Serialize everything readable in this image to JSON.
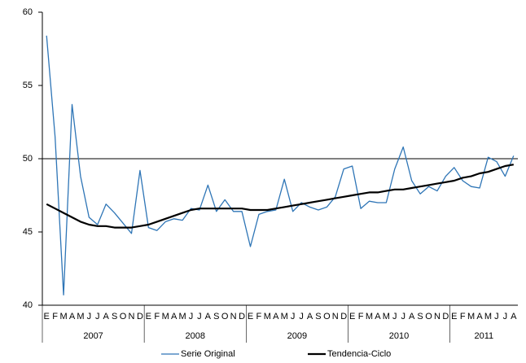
{
  "chart_data": {
    "type": "line",
    "categories": [
      "E",
      "F",
      "M",
      "A",
      "M",
      "J",
      "J",
      "A",
      "S",
      "O",
      "N",
      "D",
      "E",
      "F",
      "M",
      "A",
      "M",
      "J",
      "J",
      "A",
      "S",
      "O",
      "N",
      "D",
      "E",
      "F",
      "M",
      "A",
      "M",
      "J",
      "J",
      "A",
      "S",
      "O",
      "N",
      "D",
      "E",
      "F",
      "M",
      "A",
      "M",
      "J",
      "J",
      "A",
      "S",
      "O",
      "N",
      "D",
      "E",
      "F",
      "M",
      "A",
      "M",
      "J",
      "J",
      "A"
    ],
    "groups": [
      {
        "label": "2007",
        "count": 12
      },
      {
        "label": "2008",
        "count": 12
      },
      {
        "label": "2009",
        "count": 12
      },
      {
        "label": "2010",
        "count": 12
      },
      {
        "label": "2011",
        "count": 8
      }
    ],
    "series": [
      {
        "name": "Serie Original",
        "color": "#2e75b6",
        "width": 1.3,
        "values": [
          58.4,
          51.5,
          40.7,
          53.7,
          48.8,
          46.0,
          45.5,
          46.9,
          46.3,
          45.6,
          44.9,
          49.2,
          45.3,
          45.1,
          45.7,
          45.9,
          45.8,
          46.6,
          46.5,
          48.2,
          46.4,
          47.2,
          46.4,
          46.4,
          44.0,
          46.2,
          46.4,
          46.5,
          48.6,
          46.4,
          47.0,
          46.7,
          46.5,
          46.7,
          47.4,
          49.3,
          49.5,
          46.6,
          47.1,
          47.0,
          47.0,
          49.3,
          50.8,
          48.5,
          47.6,
          48.1,
          47.8,
          48.8,
          49.4,
          48.5,
          48.1,
          48.0,
          50.1,
          49.8,
          48.8,
          50.2
        ]
      },
      {
        "name": "Tendencia-Ciclo",
        "color": "#000000",
        "width": 2.2,
        "values": [
          46.9,
          46.6,
          46.3,
          46.0,
          45.7,
          45.5,
          45.4,
          45.4,
          45.3,
          45.3,
          45.3,
          45.4,
          45.5,
          45.7,
          45.9,
          46.1,
          46.3,
          46.5,
          46.6,
          46.6,
          46.6,
          46.6,
          46.6,
          46.6,
          46.5,
          46.5,
          46.5,
          46.6,
          46.7,
          46.8,
          46.9,
          47.0,
          47.1,
          47.2,
          47.3,
          47.4,
          47.5,
          47.6,
          47.7,
          47.7,
          47.8,
          47.9,
          47.9,
          48.0,
          48.1,
          48.2,
          48.3,
          48.4,
          48.5,
          48.7,
          48.8,
          49.0,
          49.1,
          49.3,
          49.5,
          49.6
        ]
      }
    ],
    "ylim": [
      40,
      60
    ],
    "yticks": [
      40,
      45,
      50,
      55,
      60
    ],
    "reference_line": 50,
    "legend": "bottom",
    "grid": false
  }
}
